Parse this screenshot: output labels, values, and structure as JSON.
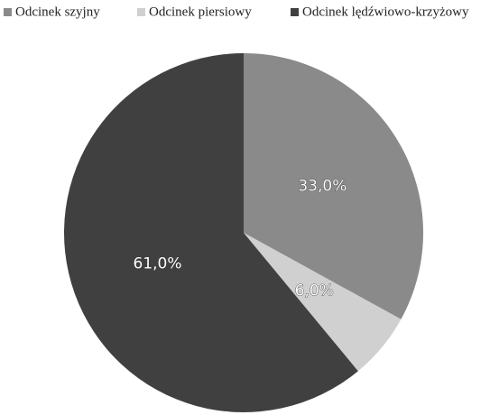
{
  "chart_data": {
    "type": "pie",
    "categories": [
      "Odcinek szyjny",
      "Odcinek piersiowy",
      "Odcinek lędźwiowo-krzyżowy"
    ],
    "values": [
      33,
      6,
      61
    ],
    "value_labels": [
      "33,0%",
      "6,0%",
      "61,0%"
    ],
    "colors": [
      "#8a8a8a",
      "#d0d0d0",
      "#404040"
    ],
    "legend": "top"
  }
}
